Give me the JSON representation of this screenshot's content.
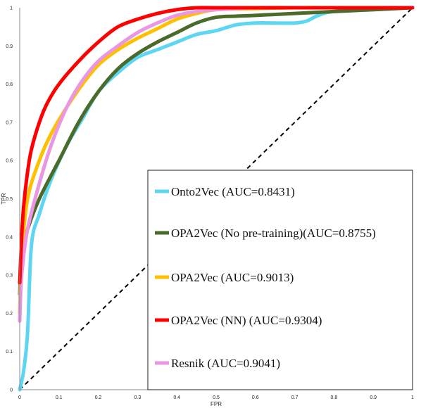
{
  "chart_data": {
    "type": "line",
    "xlabel": "FPR",
    "ylabel": "TPR",
    "xlim": [
      0,
      1
    ],
    "ylim": [
      0,
      1
    ],
    "xticks": [
      "0",
      "0.1",
      "0.2",
      "0.3",
      "0.4",
      "0.5",
      "0.6",
      "0.7",
      "0.8",
      "0.9",
      "1"
    ],
    "yticks": [
      "0",
      "0.1",
      "0.2",
      "0.3",
      "0.4",
      "0.5",
      "0.6",
      "0.7",
      "0.8",
      "0.9",
      "1"
    ],
    "grid": false,
    "legend_position": "bottom-right",
    "diagonal": {
      "style": "dashed",
      "color": "#000000",
      "x": [
        0,
        1
      ],
      "y": [
        0,
        1
      ]
    },
    "series": [
      {
        "name": "Onto2Vec (AUC=0.8431)",
        "color": "#5cd6f2",
        "x": [
          0,
          0.01,
          0.02,
          0.03,
          0.05,
          0.08,
          0.12,
          0.16,
          0.2,
          0.25,
          0.3,
          0.35,
          0.4,
          0.45,
          0.5,
          0.55,
          0.6,
          0.65,
          0.7,
          0.73,
          0.76,
          0.8,
          0.9,
          1
        ],
        "y": [
          0,
          0.05,
          0.15,
          0.38,
          0.46,
          0.55,
          0.64,
          0.71,
          0.78,
          0.83,
          0.87,
          0.89,
          0.91,
          0.93,
          0.94,
          0.955,
          0.96,
          0.96,
          0.96,
          0.965,
          0.98,
          0.99,
          0.995,
          1
        ]
      },
      {
        "name": "OPA2Vec (No pre-training)(AUC=0.8755)",
        "color": "#4a6b2a",
        "x": [
          0,
          0.005,
          0.02,
          0.05,
          0.1,
          0.15,
          0.2,
          0.25,
          0.3,
          0.35,
          0.4,
          0.45,
          0.5,
          0.55,
          0.6,
          0.7,
          0.8,
          0.9,
          1
        ],
        "y": [
          0.25,
          0.36,
          0.42,
          0.5,
          0.6,
          0.7,
          0.78,
          0.84,
          0.88,
          0.91,
          0.935,
          0.96,
          0.975,
          0.978,
          0.98,
          0.985,
          0.99,
          0.995,
          1
        ]
      },
      {
        "name": "OPA2Vec (AUC=0.9013)",
        "color": "#ffc000",
        "x": [
          0,
          0.005,
          0.02,
          0.05,
          0.08,
          0.12,
          0.16,
          0.2,
          0.25,
          0.3,
          0.35,
          0.4,
          0.45,
          0.5,
          0.6,
          0.7,
          0.8,
          0.9,
          1
        ],
        "y": [
          0.2,
          0.35,
          0.5,
          0.6,
          0.67,
          0.74,
          0.8,
          0.85,
          0.89,
          0.92,
          0.945,
          0.97,
          0.985,
          0.995,
          0.998,
          1,
          1,
          1,
          1
        ]
      },
      {
        "name": "OPA2Vec (NN) (AUC=0.9304)",
        "color": "#ff0000",
        "x": [
          0,
          0.005,
          0.01,
          0.02,
          0.03,
          0.05,
          0.07,
          0.1,
          0.15,
          0.2,
          0.25,
          0.3,
          0.35,
          0.4,
          0.45,
          0.5,
          0.6,
          0.7,
          0.8,
          0.9,
          1
        ],
        "y": [
          0.28,
          0.4,
          0.48,
          0.57,
          0.63,
          0.7,
          0.75,
          0.8,
          0.86,
          0.91,
          0.95,
          0.97,
          0.985,
          0.995,
          1,
          1,
          1,
          1,
          1,
          1,
          1
        ]
      },
      {
        "name": "Resnik (AUC=0.9041)",
        "color": "#e996e3",
        "x": [
          0,
          0.005,
          0.02,
          0.05,
          0.08,
          0.12,
          0.16,
          0.2,
          0.25,
          0.3,
          0.35,
          0.4,
          0.45,
          0.5,
          0.6,
          0.7,
          0.8,
          0.9,
          1
        ],
        "y": [
          0.18,
          0.3,
          0.42,
          0.54,
          0.64,
          0.74,
          0.81,
          0.86,
          0.9,
          0.935,
          0.96,
          0.98,
          0.99,
          0.995,
          1,
          1,
          1,
          1,
          1
        ]
      }
    ]
  }
}
